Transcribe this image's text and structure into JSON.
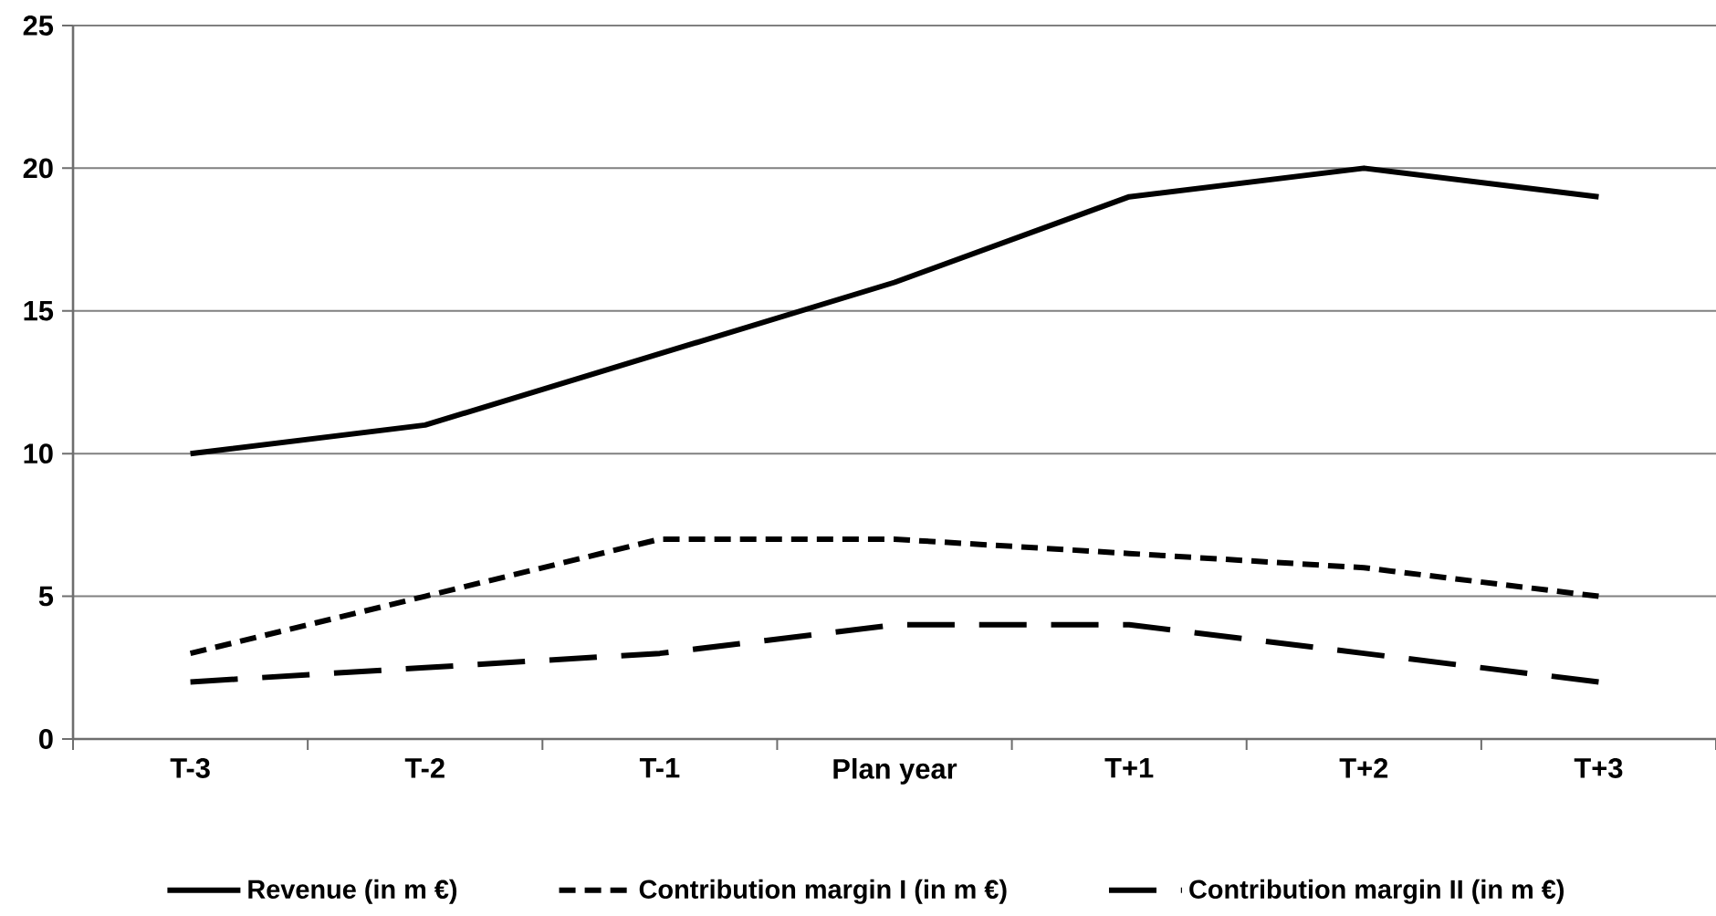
{
  "chart_data": {
    "type": "line",
    "categories": [
      "T-3",
      "T-2",
      "T-1",
      "Plan year",
      "T+1",
      "T+2",
      "T+3"
    ],
    "series": [
      {
        "name": "Revenue (in m €)",
        "color": "#000000",
        "line_style": "solid",
        "values": [
          10,
          11,
          13.5,
          16,
          19,
          20,
          19
        ]
      },
      {
        "name": "Contribution margin I (in m €)",
        "color": "#000000",
        "line_style": "dashed",
        "values": [
          3,
          5,
          7,
          7,
          6.5,
          6,
          5
        ]
      },
      {
        "name": "Contribution margin II (in m €)",
        "color": "#000000",
        "line_style": "long dashed",
        "values": [
          2,
          2.5,
          3,
          4,
          4,
          3,
          2
        ]
      }
    ],
    "ylim": [
      0,
      25
    ],
    "yticks": [
      0,
      5,
      10,
      15,
      20,
      25
    ],
    "grid": "y",
    "legend": "bottom",
    "marker": "none"
  }
}
